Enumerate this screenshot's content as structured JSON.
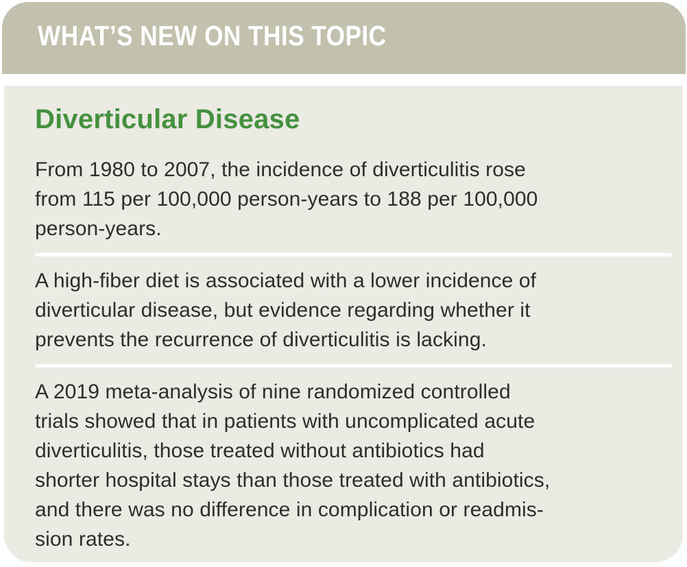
{
  "header": {
    "title": "WHAT’S NEW ON THIS TOPIC"
  },
  "content": {
    "heading": "Diverticular Disease",
    "paragraphs": [
      "From 1980 to 2007, the incidence of diverticulitis rose\nfrom 115 per 100,000 person-years to 188 per 100,000\nperson-years.",
      "A high-fiber diet is associated with a lower incidence of\ndiverticular disease, but evidence regarding whether it\nprevents the recurrence of diverticulitis is lacking.",
      "A 2019 meta-analysis of nine randomized controlled\ntrials showed that in patients with uncomplicated acute\ndiverticulitis, those treated without antibiotics had\nshorter hospital stays than those treated with antibiotics,\nand there was no difference in complication or readmis-\nsion rates."
    ]
  },
  "colors": {
    "header_bg": "#c2c1ae",
    "header_title": "#ffffff",
    "panel_bg": "#ebeae3",
    "heading_green": "#45913f",
    "body_text": "#2e2d2a",
    "divider": "#ffffff",
    "page_bg": "#ffffff"
  }
}
